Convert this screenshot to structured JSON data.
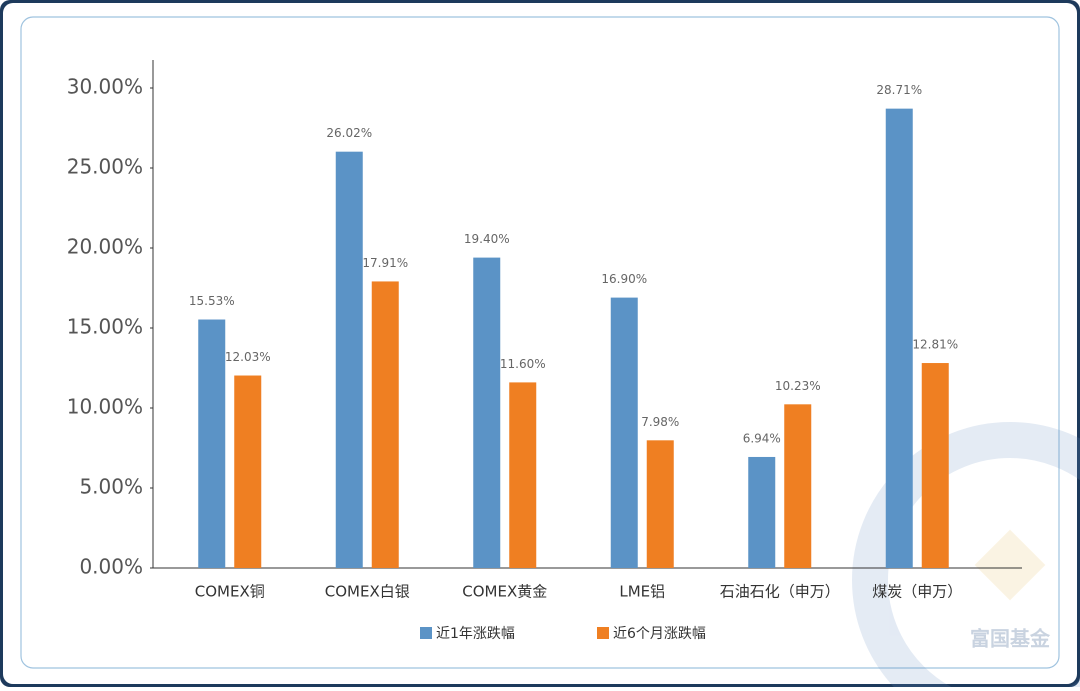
{
  "chart_data": {
    "type": "bar",
    "categories": [
      "COMEX铜",
      "COMEX白银",
      "COMEX黄金",
      "LME铝",
      "石油石化（申万）",
      "煤炭（申万）"
    ],
    "series": [
      {
        "name": "近1年涨跌幅",
        "color": "#5b93c6",
        "values": [
          15.53,
          26.02,
          19.4,
          16.9,
          6.94,
          28.71
        ],
        "value_labels": [
          "15.53%",
          "26.02%",
          "19.40%",
          "16.90%",
          "6.94%",
          "28.71%"
        ]
      },
      {
        "name": "近6个月涨跌幅",
        "color": "#ef7f22",
        "values": [
          12.03,
          17.91,
          11.6,
          7.98,
          10.23,
          12.81
        ],
        "value_labels": [
          "12.03%",
          "17.91%",
          "11.60%",
          "7.98%",
          "10.23%",
          "12.81%"
        ]
      }
    ],
    "ylim": [
      0,
      30
    ],
    "yticks": [
      {
        "value": 0,
        "label": "0.00%"
      },
      {
        "value": 5,
        "label": "5.00%"
      },
      {
        "value": 10,
        "label": "10.00%"
      },
      {
        "value": 15,
        "label": "15.00%"
      },
      {
        "value": 20,
        "label": "20.00%"
      },
      {
        "value": 25,
        "label": "25.00%"
      },
      {
        "value": 30,
        "label": "30.00%"
      }
    ],
    "grid": false,
    "legend": "bottom",
    "watermark": "富国基金"
  }
}
